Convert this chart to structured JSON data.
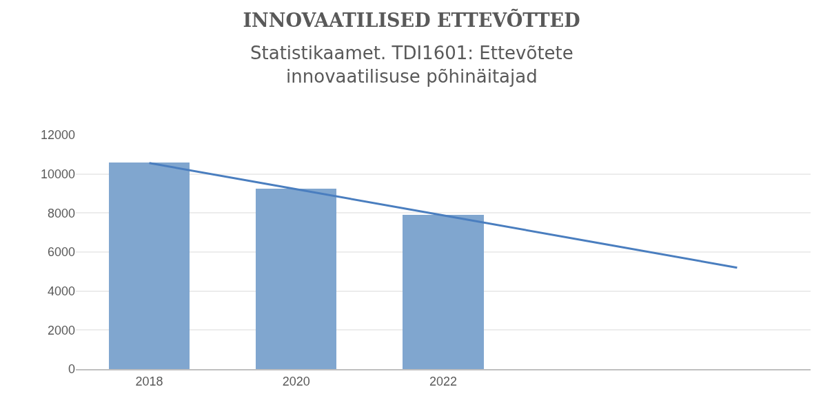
{
  "chart_data": {
    "type": "bar",
    "title": "INNOVAATILISED ETTEVÕTTED",
    "subtitle": "Statistikaamet. TDI1601: Ettevõtete innovaatilisuse põhinäitajad",
    "categories": [
      "2018",
      "2020",
      "2022",
      null,
      null
    ],
    "series": [
      {
        "color": "#80a6cf",
        "values": [
          10580,
          9240,
          7890,
          null,
          null
        ]
      },
      {
        "type": "line",
        "color": "#4a7ebf",
        "values": [
          10560,
          9220,
          7880,
          6540,
          5200
        ],
        "marker": "none",
        "line_style": "solid"
      }
    ],
    "ylim": [
      0,
      12000
    ],
    "yticks": [
      0,
      2000,
      4000,
      6000,
      8000,
      10000,
      12000
    ],
    "grid": "y"
  }
}
